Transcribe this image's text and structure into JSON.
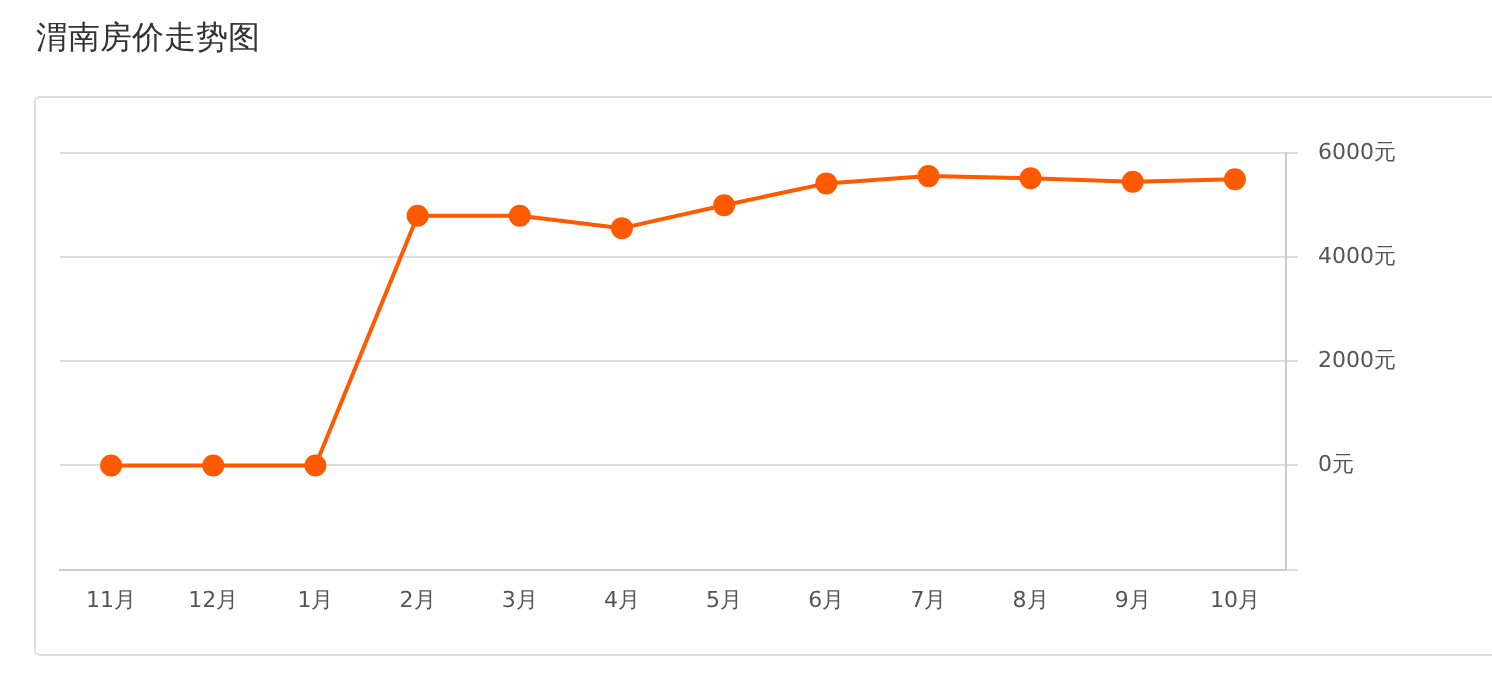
{
  "chart_data": {
    "type": "line",
    "title": "渭南房价走势图",
    "categories": [
      "11月",
      "12月",
      "1月",
      "2月",
      "3月",
      "4月",
      "5月",
      "6月",
      "7月",
      "8月",
      "9月",
      "10月"
    ],
    "series": [
      {
        "color": "#ff5a00",
        "values": [
          0,
          0,
          0,
          4800,
          4800,
          4560,
          5000,
          5420,
          5560,
          5520,
          5450,
          5500
        ]
      }
    ],
    "ylim": [
      -2000,
      6000
    ],
    "yticks": [
      {
        "value": -2000,
        "label": null
      },
      {
        "value": 0,
        "label": "0元"
      },
      {
        "value": 2000,
        "label": "2000元"
      },
      {
        "value": 4000,
        "label": "4000元"
      },
      {
        "value": 6000,
        "label": "6000元"
      }
    ],
    "grid": "y",
    "marker": "circle",
    "line_style": "solid",
    "legend": false
  }
}
